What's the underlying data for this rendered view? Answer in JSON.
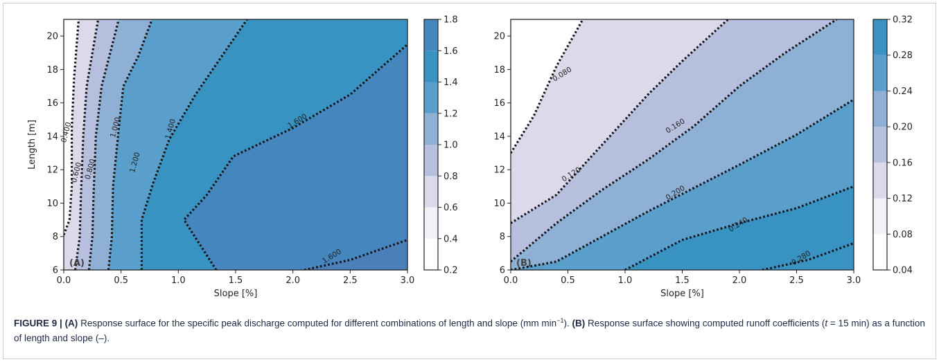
{
  "caption": {
    "label": "FIGURE 9 |",
    "a_tag": "(A)",
    "a_text": " Response surface for the specific peak discharge computed for different combinations of length and slope (mm min",
    "a_unit_exp": "−1",
    "a_tail": "). ",
    "b_tag": "(B)",
    "b_text": " Response surface showing computed runoff coefficients (",
    "b_t": "t",
    "b_text2": " = 15 min) as a function of length and slope (–)."
  },
  "colors": {
    "levels": [
      "#ffffff",
      "#f3f0f7",
      "#dcd9ea",
      "#b6bfdd",
      "#8db0d4",
      "#5a9fcb",
      "#3892c2",
      "#4686bf",
      "#4b7fb9"
    ]
  },
  "chart_data": [
    {
      "type": "contour",
      "panel_label": "(A)",
      "xlabel": "Slope [%]",
      "ylabel": "Length [m]",
      "xlim": [
        0.0,
        3.0
      ],
      "ylim": [
        6,
        21
      ],
      "xticks": [
        "0.0",
        "0.5",
        "1.0",
        "1.5",
        "2.0",
        "2.5",
        "3.0"
      ],
      "yticks": [
        "6",
        "8",
        "10",
        "12",
        "14",
        "16",
        "18",
        "20"
      ],
      "colorbar_ticks": [
        "0.2",
        "0.4",
        "0.6",
        "0.8",
        "1.0",
        "1.2",
        "1.4",
        "1.6",
        "1.8"
      ],
      "contour_lines": [
        {
          "level": "0.400",
          "points": [
            [
              0.0,
              8.1
            ],
            [
              0.05,
              9.0
            ],
            [
              0.07,
              11.0
            ],
            [
              0.07,
              14.5
            ],
            [
              0.09,
              17.5
            ],
            [
              0.13,
              21.0
            ]
          ]
        },
        {
          "level": "0.600",
          "points": [
            [
              0.1,
              6.0
            ],
            [
              0.14,
              8.0
            ],
            [
              0.15,
              10.5
            ],
            [
              0.17,
              14.0
            ],
            [
              0.2,
              17.0
            ],
            [
              0.3,
              21.0
            ]
          ]
        },
        {
          "level": "0.800",
          "points": [
            [
              0.22,
              6.0
            ],
            [
              0.25,
              8.0
            ],
            [
              0.26,
              10.5
            ],
            [
              0.28,
              14.0
            ],
            [
              0.33,
              17.0
            ],
            [
              0.48,
              21.0
            ]
          ]
        },
        {
          "level": "1.000",
          "points": [
            [
              0.39,
              6.0
            ],
            [
              0.42,
              8.0
            ],
            [
              0.43,
              11.0
            ],
            [
              0.48,
              14.5
            ],
            [
              0.52,
              17.0
            ],
            [
              0.65,
              18.8
            ],
            [
              0.77,
              21.0
            ]
          ]
        },
        {
          "level": "1.200",
          "points": [
            [
              0.68,
              6.0
            ],
            [
              0.68,
              9.0
            ],
            [
              0.78,
              11.2
            ],
            [
              0.92,
              13.8
            ],
            [
              1.15,
              16.5
            ],
            [
              1.35,
              18.5
            ],
            [
              1.6,
              21.0
            ]
          ]
        },
        {
          "level": "1.400",
          "points": [
            [
              1.33,
              6.0
            ],
            [
              1.05,
              9.0
            ],
            [
              1.25,
              10.5
            ],
            [
              1.48,
              12.8
            ],
            [
              2.0,
              14.5
            ],
            [
              2.5,
              16.5
            ],
            [
              3.0,
              19.5
            ]
          ]
        },
        {
          "level": "1.600",
          "points": [
            [
              2.1,
              6.0
            ],
            [
              2.5,
              6.6
            ],
            [
              3.0,
              7.8
            ]
          ]
        }
      ],
      "contour_labels": [
        {
          "text": "0.400",
          "x": 0.04,
          "y": 14.2
        },
        {
          "text": "0.600",
          "x": 0.13,
          "y": 11.8
        },
        {
          "text": "0.800",
          "x": 0.25,
          "y": 12.0
        },
        {
          "text": "1.000",
          "x": 0.47,
          "y": 14.5
        },
        {
          "text": "1.200",
          "x": 0.64,
          "y": 12.4
        },
        {
          "text": "1.400",
          "x": 0.95,
          "y": 14.4
        },
        {
          "text": "1.600",
          "x": 2.05,
          "y": 14.8
        },
        {
          "text": "1.600",
          "x": 2.35,
          "y": 6.7
        }
      ]
    },
    {
      "type": "contour",
      "panel_label": "(B)",
      "xlabel": "Slope [%]",
      "ylabel": "",
      "xlim": [
        0.0,
        3.0
      ],
      "ylim": [
        6,
        21
      ],
      "xticks": [
        "0.0",
        "0.5",
        "1.0",
        "1.5",
        "2.0",
        "2.5",
        "3.0"
      ],
      "yticks": [
        "6",
        "8",
        "10",
        "12",
        "14",
        "16",
        "18",
        "20"
      ],
      "colorbar_ticks": [
        "0.04",
        "0.08",
        "0.12",
        "0.16",
        "0.20",
        "0.24",
        "0.28",
        "0.32"
      ],
      "contour_lines": [
        {
          "level": "0.080",
          "points": [
            [
              0.0,
              13.0
            ],
            [
              0.2,
              15.2
            ],
            [
              0.4,
              18.2
            ],
            [
              0.63,
              21.0
            ]
          ]
        },
        {
          "level": "0.120",
          "points": [
            [
              0.0,
              8.8
            ],
            [
              0.4,
              10.5
            ],
            [
              0.8,
              13.5
            ],
            [
              1.2,
              16.5
            ],
            [
              1.5,
              18.5
            ],
            [
              1.9,
              21.0
            ]
          ]
        },
        {
          "level": "0.160",
          "points": [
            [
              0.0,
              6.5
            ],
            [
              0.4,
              8.8
            ],
            [
              0.8,
              10.8
            ],
            [
              1.2,
              12.6
            ],
            [
              1.6,
              14.6
            ],
            [
              2.0,
              17.0
            ],
            [
              2.4,
              19.0
            ],
            [
              2.85,
              21.0
            ]
          ]
        },
        {
          "level": "0.200",
          "points": [
            [
              0.0,
              6.0
            ],
            [
              0.4,
              6.5
            ],
            [
              0.8,
              8.0
            ],
            [
              1.2,
              9.5
            ],
            [
              1.6,
              10.9
            ],
            [
              2.0,
              12.3
            ],
            [
              2.5,
              14.1
            ],
            [
              3.0,
              16.2
            ]
          ]
        },
        {
          "level": "0.240",
          "points": [
            [
              1.0,
              6.0
            ],
            [
              1.5,
              7.8
            ],
            [
              2.0,
              8.8
            ],
            [
              2.5,
              9.7
            ],
            [
              3.0,
              11.0
            ]
          ]
        },
        {
          "level": "0.280",
          "points": [
            [
              2.2,
              6.0
            ],
            [
              2.6,
              6.6
            ],
            [
              3.0,
              7.6
            ]
          ]
        }
      ],
      "contour_labels": [
        {
          "text": "0.080",
          "x": 0.46,
          "y": 17.6
        },
        {
          "text": "0.120",
          "x": 0.54,
          "y": 11.6
        },
        {
          "text": "0.160",
          "x": 1.45,
          "y": 14.5
        },
        {
          "text": "0.200",
          "x": 1.45,
          "y": 10.5
        },
        {
          "text": "0.240",
          "x": 2.0,
          "y": 8.6
        },
        {
          "text": "0.280",
          "x": 2.55,
          "y": 6.6
        }
      ]
    }
  ]
}
